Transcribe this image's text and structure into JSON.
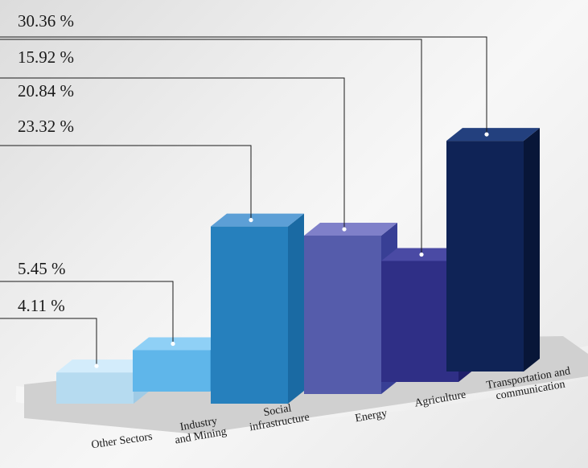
{
  "chart_data": {
    "type": "bar",
    "categories": [
      "Other Sectors",
      "Industry and Mining",
      "Social infrastructure",
      "Energy",
      "Agriculture",
      "Transportation and communication"
    ],
    "category_lines": [
      [
        "Other Sectors"
      ],
      [
        "Industry",
        "and Mining"
      ],
      [
        "Social",
        "infrastructure"
      ],
      [
        "Energy"
      ],
      [
        "Agriculture"
      ],
      [
        "Transportation and",
        "communication"
      ]
    ],
    "values": [
      4.11,
      5.45,
      23.32,
      20.84,
      15.92,
      30.36
    ],
    "value_labels": [
      "4.11 %",
      "5.45 %",
      "23.32 %",
      "20.84 %",
      "15.92 %",
      "30.36 %"
    ],
    "colors": [
      {
        "front": "#b6dbf0",
        "side": "#9fcbe6",
        "top": "#d3ecfb"
      },
      {
        "front": "#5fb6ea",
        "side": "#4aa6df",
        "top": "#8fd0f6"
      },
      {
        "front": "#2680bd",
        "side": "#1a6aa3",
        "top": "#5c9fd6"
      },
      {
        "front": "#555cab",
        "side": "#383f95",
        "top": "#7f80c9"
      },
      {
        "front": "#2f2f86",
        "side": "#1f1f6a",
        "top": "#4a4aa4"
      },
      {
        "front": "#0f2356",
        "side": "#081638",
        "top": "#23407e"
      }
    ],
    "floor_color": "#d0d0d0",
    "legend": "none",
    "grid": false
  }
}
